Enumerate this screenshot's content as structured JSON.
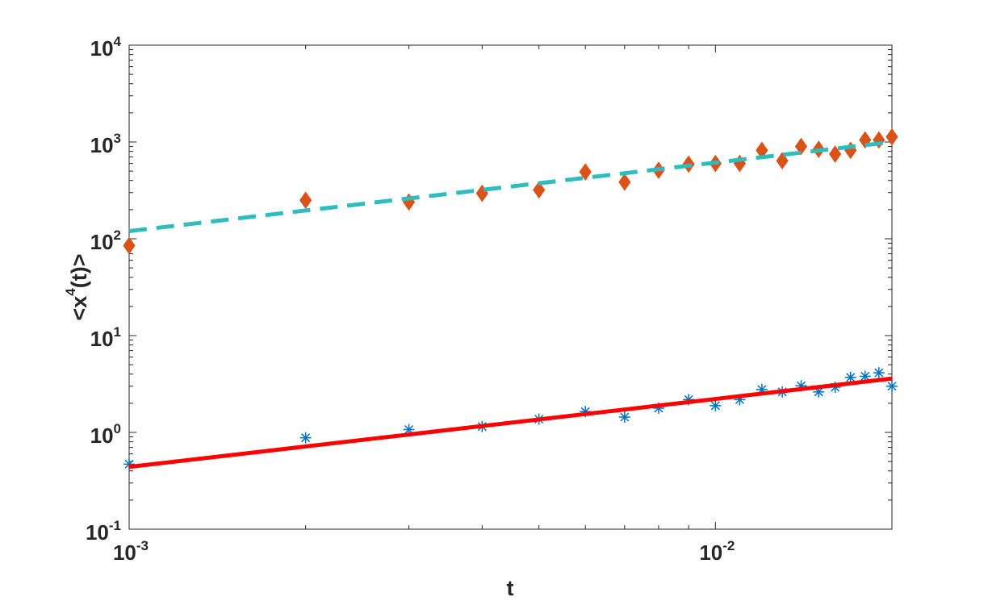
{
  "chart_data": {
    "type": "scatter",
    "xscale": "log",
    "yscale": "log",
    "xlim": [
      0.001,
      0.02
    ],
    "ylim": [
      0.1,
      10000
    ],
    "grid": false,
    "legend": "none",
    "xlabel": {
      "base": "t",
      "sup": ""
    },
    "ylabel": {
      "base": "<x",
      "sup": "4",
      "rest": "(t)>"
    },
    "xticks": [
      {
        "value": 0.001,
        "base": "10",
        "exp": "-3"
      },
      {
        "value": 0.01,
        "base": "10",
        "exp": "-2"
      }
    ],
    "yticks": [
      {
        "value": 0.1,
        "base": "10",
        "exp": "-1"
      },
      {
        "value": 1,
        "base": "10",
        "exp": "0"
      },
      {
        "value": 10,
        "base": "10",
        "exp": "1"
      },
      {
        "value": 100,
        "base": "10",
        "exp": "2"
      },
      {
        "value": 1000,
        "base": "10",
        "exp": "3"
      },
      {
        "value": 10000,
        "base": "10",
        "exp": "4"
      }
    ],
    "series": [
      {
        "marker": "diamond",
        "color": "#D95319",
        "x": [
          0.001,
          0.002,
          0.003,
          0.004,
          0.005,
          0.006,
          0.007,
          0.008,
          0.009,
          0.01,
          0.011,
          0.012,
          0.013,
          0.014,
          0.015,
          0.016,
          0.017,
          0.018,
          0.019,
          0.02
        ],
        "y": [
          85,
          250,
          240,
          295,
          320,
          490,
          385,
          510,
          590,
          600,
          600,
          820,
          640,
          900,
          840,
          750,
          820,
          1050,
          1050,
          1130
        ]
      },
      {
        "marker": "asterisk",
        "color": "#0072BD",
        "x": [
          0.001,
          0.002,
          0.003,
          0.004,
          0.005,
          0.006,
          0.007,
          0.008,
          0.009,
          0.01,
          0.011,
          0.012,
          0.013,
          0.014,
          0.015,
          0.016,
          0.017,
          0.018,
          0.019,
          0.02
        ],
        "y": [
          0.47,
          0.88,
          1.07,
          1.15,
          1.37,
          1.64,
          1.44,
          1.78,
          2.18,
          1.89,
          2.18,
          2.77,
          2.62,
          3.03,
          2.62,
          2.93,
          3.7,
          3.8,
          4.13,
          3.0
        ]
      },
      {
        "line": "dashed",
        "color": "#2EBDBC",
        "x": [
          0.001,
          0.02
        ],
        "y": [
          120,
          1000
        ]
      },
      {
        "line": "solid",
        "color": "#FF0000",
        "x": [
          0.001,
          0.02
        ],
        "y": [
          0.44,
          3.6
        ]
      }
    ]
  }
}
